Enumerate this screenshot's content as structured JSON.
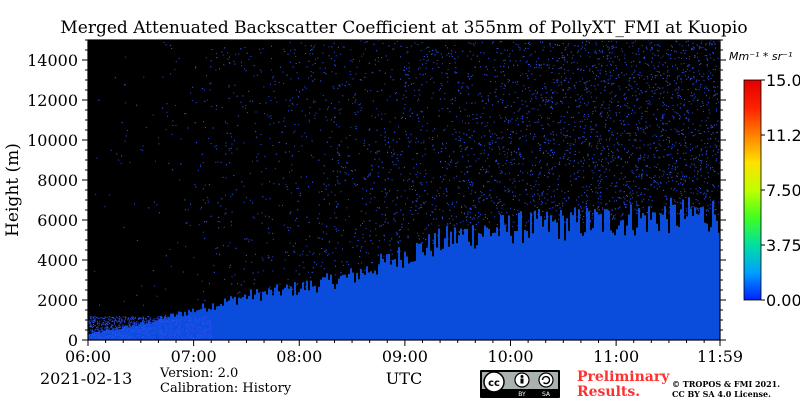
{
  "chart_data": {
    "type": "heatmap",
    "title": "Merged Attenuated Backscatter Coefficient at 355nm of PollyXT_FMI at Kuopio",
    "ylabel": "Height (m)",
    "xlabel": "UTC",
    "x_ticks": [
      "06:00",
      "07:00",
      "08:00",
      "09:00",
      "10:00",
      "11:00",
      "11:59"
    ],
    "x_range": [
      "06:00",
      "11:59"
    ],
    "y_ticks": [
      0,
      2000,
      4000,
      6000,
      8000,
      10000,
      12000,
      14000
    ],
    "ylim": [
      0,
      15000
    ],
    "colorbar": {
      "unit": "Mm⁻¹ * sr⁻¹",
      "ticks": [
        "0.00",
        "3.75",
        "7.50",
        "11.25",
        "15.00"
      ],
      "range": [
        0,
        15
      ],
      "colormap": [
        "#0020ff",
        "#00a0ff",
        "#00e0a0",
        "#40ff20",
        "#c0ff00",
        "#ffe000",
        "#ff8000",
        "#ff2000",
        "#e00000"
      ]
    },
    "profile_summary": [
      {
        "time": "06:00",
        "signal_top_m": 300
      },
      {
        "time": "06:30",
        "signal_top_m": 800
      },
      {
        "time": "07:00",
        "signal_top_m": 1500
      },
      {
        "time": "07:30",
        "signal_top_m": 2200
      },
      {
        "time": "08:00",
        "signal_top_m": 2600
      },
      {
        "time": "08:30",
        "signal_top_m": 3200
      },
      {
        "time": "09:00",
        "signal_top_m": 4300
      },
      {
        "time": "09:30",
        "signal_top_m": 5200
      },
      {
        "time": "10:00",
        "signal_top_m": 5600
      },
      {
        "time": "10:30",
        "signal_top_m": 5800
      },
      {
        "time": "11:00",
        "signal_top_m": 6000
      },
      {
        "time": "11:30",
        "signal_top_m": 6200
      },
      {
        "time": "11:59",
        "signal_top_m": 6300
      }
    ],
    "colors": {
      "background": "#000000",
      "signal": "#0a4cdc",
      "noise": "#2a4ff0"
    }
  },
  "footer": {
    "date": "2021-02-13",
    "version": "Version: 2.0",
    "calibration": "Calibration: History",
    "utc": "UTC",
    "license_badge": {
      "cc": "cc",
      "by": "BY",
      "sa": "SA"
    },
    "preliminary": [
      "Preliminary",
      "Results."
    ],
    "copyright": [
      "© TROPOS & FMI 2021.",
      "CC BY SA 4.0 License."
    ]
  }
}
